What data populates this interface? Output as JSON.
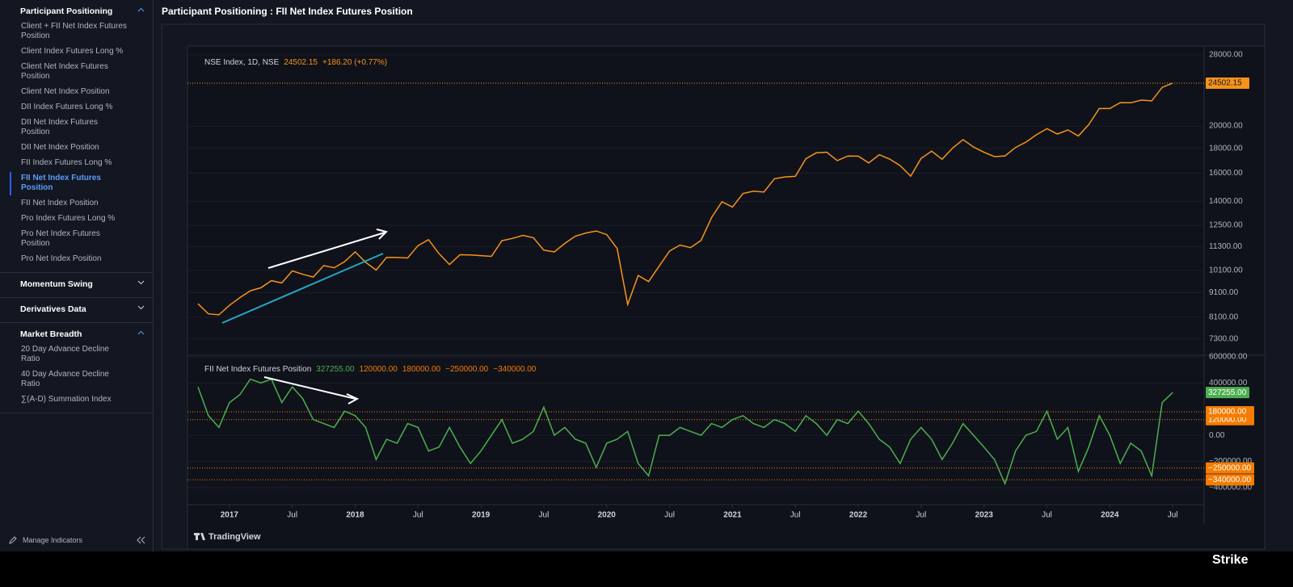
{
  "sidebar": {
    "sections": [
      {
        "title": "Participant Positioning",
        "expanded": true,
        "active": 8,
        "items": [
          "Client + FII Net Index Futures Position",
          "Client Index Futures Long %",
          "Client Net Index Futures Position",
          "Client Net Index Position",
          "DII Index Futures Long %",
          "DII Net Index Futures Position",
          "DII Net Index Position",
          "FII Index Futures Long %",
          "FII Net Index Futures Position",
          "FII Net Index Position",
          "Pro Index Futures Long %",
          "Pro Net Index Futures Position",
          "Pro Net Index Position"
        ]
      },
      {
        "title": "Momentum Swing",
        "expanded": false,
        "items": []
      },
      {
        "title": "Derivatives Data",
        "expanded": false,
        "items": []
      },
      {
        "title": "Market Breadth",
        "expanded": true,
        "items": [
          "20 Day Advance Decline Ratio",
          "40 Day Advance Decline Ratio",
          "∑(A-D) Summation Index"
        ]
      }
    ],
    "manage": "Manage Indicators"
  },
  "header": {
    "title": "Participant Positioning : FII Net Index Futures Position"
  },
  "footer": {
    "provider": "TradingView",
    "brand": "Strike"
  },
  "chart_data": [
    {
      "type": "line",
      "log_scale": true,
      "grid": true,
      "legend": {
        "name": "NSE Index, 1D, NSE",
        "last": "24502.15",
        "change": "+186.20 (+0.77%)"
      },
      "x": [
        "2016-10",
        "2016-11",
        "2016-12",
        "2017-01",
        "2017-02",
        "2017-03",
        "2017-04",
        "2017-05",
        "2017-06",
        "2017-07",
        "2017-08",
        "2017-09",
        "2017-10",
        "2017-11",
        "2017-12",
        "2018-01",
        "2018-02",
        "2018-03",
        "2018-04",
        "2018-05",
        "2018-06",
        "2018-07",
        "2018-08",
        "2018-09",
        "2018-10",
        "2018-11",
        "2018-12",
        "2019-01",
        "2019-02",
        "2019-03",
        "2019-04",
        "2019-05",
        "2019-06",
        "2019-07",
        "2019-08",
        "2019-09",
        "2019-10",
        "2019-11",
        "2019-12",
        "2020-01",
        "2020-02",
        "2020-03",
        "2020-04",
        "2020-05",
        "2020-06",
        "2020-07",
        "2020-08",
        "2020-09",
        "2020-10",
        "2020-11",
        "2020-12",
        "2021-01",
        "2021-02",
        "2021-03",
        "2021-04",
        "2021-05",
        "2021-06",
        "2021-07",
        "2021-08",
        "2021-09",
        "2021-10",
        "2021-11",
        "2021-12",
        "2022-01",
        "2022-02",
        "2022-03",
        "2022-04",
        "2022-05",
        "2022-06",
        "2022-07",
        "2022-08",
        "2022-09",
        "2022-10",
        "2022-11",
        "2022-12",
        "2023-01",
        "2023-02",
        "2023-03",
        "2023-04",
        "2023-05",
        "2023-06",
        "2023-07",
        "2023-08",
        "2023-09",
        "2023-10",
        "2023-11",
        "2023-12",
        "2024-01",
        "2024-02",
        "2024-03",
        "2024-04",
        "2024-05",
        "2024-06",
        "2024-07"
      ],
      "series": [
        {
          "name": "NSE Index",
          "color": "#f7931a",
          "values": [
            8626,
            8224,
            8186,
            8561,
            8880,
            9174,
            9304,
            9621,
            9521,
            10077,
            9918,
            9789,
            10335,
            10227,
            10531,
            11028,
            10493,
            10114,
            10739,
            10736,
            10714,
            11357,
            11681,
            10930,
            10387,
            10877,
            10863,
            10831,
            10793,
            11624,
            11748,
            11923,
            11789,
            11118,
            11023,
            11474,
            11877,
            12056,
            12168,
            11962,
            11202,
            8598,
            9860,
            9580,
            10302,
            11073,
            11388,
            11248,
            11642,
            12969,
            13982,
            13635,
            14529,
            14691,
            14631,
            15583,
            15722,
            15763,
            17132,
            17618,
            17672,
            16983,
            17354,
            17340,
            16794,
            17465,
            17103,
            16585,
            15780,
            17158,
            17759,
            17094,
            18012,
            18758,
            18105,
            17662,
            17304,
            17360,
            18065,
            18534,
            19189,
            19754,
            19254,
            19638,
            19080,
            20133,
            21731,
            21726,
            22338,
            22327,
            22605,
            22531,
            24011,
            24502.15
          ]
        }
      ],
      "xlim": [
        "2016-09",
        "2024-10"
      ],
      "ylim": [
        6760,
        28870
      ],
      "yticks": [
        {
          "value": 7300,
          "label": "7300.00"
        },
        {
          "value": 8100,
          "label": "8100.00"
        },
        {
          "value": 9100,
          "label": "9100.00"
        },
        {
          "value": 10100,
          "label": "10100.00"
        },
        {
          "value": 11300,
          "label": "11300.00"
        },
        {
          "value": 12500,
          "label": "12500.00"
        },
        {
          "value": 14000,
          "label": "14000.00"
        },
        {
          "value": 16000,
          "label": "16000.00"
        },
        {
          "value": 18000,
          "label": "18000.00"
        },
        {
          "value": 20000,
          "label": "20000.00"
        },
        {
          "value": 28000,
          "label": "28000.00"
        }
      ]
    },
    {
      "type": "line",
      "log_scale": false,
      "grid": true,
      "legend": {
        "name": "FII Net Index Futures Position",
        "last": "327255.00"
      },
      "x": [
        "2016-10",
        "2016-11",
        "2016-12",
        "2017-01",
        "2017-02",
        "2017-03",
        "2017-04",
        "2017-05",
        "2017-06",
        "2017-07",
        "2017-08",
        "2017-09",
        "2017-10",
        "2017-11",
        "2017-12",
        "2018-01",
        "2018-02",
        "2018-03",
        "2018-04",
        "2018-05",
        "2018-06",
        "2018-07",
        "2018-08",
        "2018-09",
        "2018-10",
        "2018-11",
        "2018-12",
        "2019-01",
        "2019-02",
        "2019-03",
        "2019-04",
        "2019-05",
        "2019-06",
        "2019-07",
        "2019-08",
        "2019-09",
        "2019-10",
        "2019-11",
        "2019-12",
        "2020-01",
        "2020-02",
        "2020-03",
        "2020-04",
        "2020-05",
        "2020-06",
        "2020-07",
        "2020-08",
        "2020-09",
        "2020-10",
        "2020-11",
        "2020-12",
        "2021-01",
        "2021-02",
        "2021-03",
        "2021-04",
        "2021-05",
        "2021-06",
        "2021-07",
        "2021-08",
        "2021-09",
        "2021-10",
        "2021-11",
        "2021-12",
        "2022-01",
        "2022-02",
        "2022-03",
        "2022-04",
        "2022-05",
        "2022-06",
        "2022-07",
        "2022-08",
        "2022-09",
        "2022-10",
        "2022-11",
        "2022-12",
        "2023-01",
        "2023-02",
        "2023-03",
        "2023-04",
        "2023-05",
        "2023-06",
        "2023-07",
        "2023-08",
        "2023-09",
        "2023-10",
        "2023-11",
        "2023-12",
        "2024-01",
        "2024-02",
        "2024-03",
        "2024-04",
        "2024-05",
        "2024-06",
        "2024-07"
      ],
      "series": [
        {
          "name": "FII Net Index Futures Position",
          "color": "#4caf50",
          "values": [
            370000,
            150000,
            60000,
            250000,
            310000,
            430000,
            400000,
            430000,
            250000,
            370000,
            280000,
            120000,
            90000,
            60000,
            185000,
            150000,
            60000,
            -185000,
            -30000,
            -60000,
            90000,
            60000,
            -120000,
            -90000,
            60000,
            -90000,
            -215000,
            -120000,
            0,
            120000,
            -60000,
            -30000,
            30000,
            215000,
            0,
            60000,
            -30000,
            -60000,
            -245000,
            -60000,
            -30000,
            30000,
            -215000,
            -310000,
            0,
            0,
            60000,
            30000,
            0,
            90000,
            60000,
            120000,
            150000,
            90000,
            60000,
            120000,
            90000,
            30000,
            150000,
            90000,
            0,
            120000,
            90000,
            185000,
            90000,
            -30000,
            -90000,
            -215000,
            -30000,
            60000,
            -30000,
            -185000,
            -60000,
            90000,
            0,
            -90000,
            -185000,
            -370000,
            -120000,
            0,
            30000,
            185000,
            -30000,
            60000,
            -275000,
            -90000,
            150000,
            0,
            -215000,
            -60000,
            -120000,
            -310000,
            250000,
            327255
          ]
        }
      ],
      "levels": [
        {
          "value": 120000,
          "label": "120000.00"
        },
        {
          "value": 180000,
          "label": "180000.00"
        },
        {
          "value": -250000,
          "label": "−250000.00"
        },
        {
          "value": -340000,
          "label": "−340000.00"
        }
      ],
      "level_color": "#f57c00",
      "xlim": [
        "2016-09",
        "2024-10"
      ],
      "ylim": [
        -530000,
        612000
      ],
      "yticks": [
        {
          "value": -400000,
          "label": "−400000.00"
        },
        {
          "value": -200000,
          "label": "−200000.00"
        },
        {
          "value": 0,
          "label": "0.00"
        },
        {
          "value": 400000,
          "label": "400000.00"
        },
        {
          "value": 600000,
          "label": "600000.00"
        }
      ],
      "xticks": [
        {
          "value": "2017-01",
          "label": "2017"
        },
        {
          "value": "2017-07",
          "label": "Jul"
        },
        {
          "value": "2018-01",
          "label": "2018"
        },
        {
          "value": "2018-07",
          "label": "Jul"
        },
        {
          "value": "2019-01",
          "label": "2019"
        },
        {
          "value": "2019-07",
          "label": "Jul"
        },
        {
          "value": "2020-01",
          "label": "2020"
        },
        {
          "value": "2020-07",
          "label": "Jul"
        },
        {
          "value": "2021-01",
          "label": "2021"
        },
        {
          "value": "2021-07",
          "label": "Jul"
        },
        {
          "value": "2022-01",
          "label": "2022"
        },
        {
          "value": "2022-07",
          "label": "Jul"
        },
        {
          "value": "2023-01",
          "label": "2023"
        },
        {
          "value": "2023-07",
          "label": "Jul"
        },
        {
          "value": "2024-01",
          "label": "2024"
        },
        {
          "value": "2024-07",
          "label": "Jul"
        }
      ]
    }
  ]
}
